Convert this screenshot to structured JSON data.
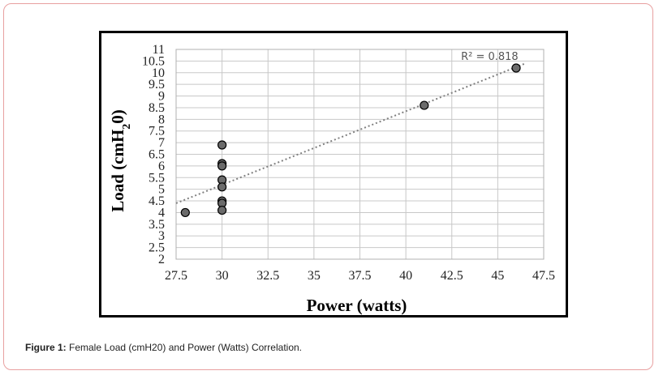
{
  "figure": {
    "caption_label": "Figure 1:",
    "caption_text": " Female Load (cmH20) and Power (Watts) Correlation."
  },
  "colors": {
    "frame_border": "#e8a0a0",
    "marker_fill": "#6b6b6b",
    "marker_stroke": "#000000",
    "grid": "#c8c8c8",
    "trendline": "#808080"
  },
  "chart_data": {
    "type": "scatter",
    "xlabel": "Power (watts)",
    "ylabel_parts": [
      "Load (cmH",
      "2",
      "0)"
    ],
    "xlim": [
      27.5,
      47.5
    ],
    "ylim": [
      2,
      11
    ],
    "x_ticks": [
      "27.5",
      "30",
      "32.5",
      "35",
      "37.5",
      "40",
      "42.5",
      "45",
      "47.5"
    ],
    "x_tick_values": [
      27.5,
      30,
      32.5,
      35,
      37.5,
      40,
      42.5,
      45,
      47.5
    ],
    "y_ticks": [
      "2",
      "2.5",
      "3",
      "3.5",
      "4",
      "4.5",
      "5",
      "5.5",
      "6",
      "6.5",
      "7",
      "7.5",
      "8",
      "8.5",
      "9",
      "9.5",
      "10",
      "10.5",
      "11"
    ],
    "y_tick_values": [
      2,
      2.5,
      3,
      3.5,
      4,
      4.5,
      5,
      5.5,
      6,
      6.5,
      7,
      7.5,
      8,
      8.5,
      9,
      9.5,
      10,
      10.5,
      11
    ],
    "grid": true,
    "points": [
      {
        "x": 28,
        "y": 4.0
      },
      {
        "x": 30,
        "y": 6.9
      },
      {
        "x": 30,
        "y": 6.1
      },
      {
        "x": 30,
        "y": 6.0
      },
      {
        "x": 30,
        "y": 5.4
      },
      {
        "x": 30,
        "y": 5.1
      },
      {
        "x": 30,
        "y": 4.5
      },
      {
        "x": 30,
        "y": 4.4
      },
      {
        "x": 30,
        "y": 4.1
      },
      {
        "x": 41,
        "y": 8.6
      },
      {
        "x": 46,
        "y": 10.2
      }
    ],
    "trendline": {
      "x0": 27.5,
      "y0": 4.4,
      "x1": 46.5,
      "y1": 10.4
    },
    "r2_label": "R² = 0.818",
    "r2_anchor": {
      "x": 43.0,
      "y": 10.55
    }
  }
}
